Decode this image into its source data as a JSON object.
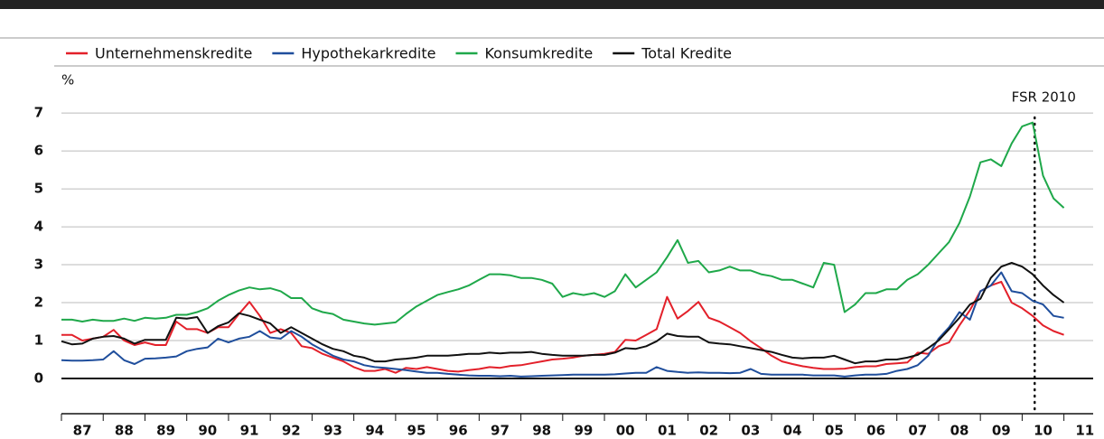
{
  "chart_data": {
    "type": "line",
    "y_unit": "%",
    "annotation": {
      "text": "FSR 2010",
      "x": 2010.3
    },
    "legend": "top-left",
    "grid": true,
    "xlim": [
      1987,
      2011.7
    ],
    "ylim": [
      -0.93,
      7.6
    ],
    "yticks": [
      0,
      1,
      2,
      3,
      4,
      5,
      6,
      7
    ],
    "xticks": [
      {
        "value": 1987.5,
        "label": "87"
      },
      {
        "value": 1988.5,
        "label": "88"
      },
      {
        "value": 1989.5,
        "label": "89"
      },
      {
        "value": 1990.5,
        "label": "90"
      },
      {
        "value": 1991.5,
        "label": "91"
      },
      {
        "value": 1992.5,
        "label": "92"
      },
      {
        "value": 1993.5,
        "label": "93"
      },
      {
        "value": 1994.5,
        "label": "94"
      },
      {
        "value": 1995.5,
        "label": "95"
      },
      {
        "value": 1996.5,
        "label": "96"
      },
      {
        "value": 1997.5,
        "label": "97"
      },
      {
        "value": 1998.5,
        "label": "98"
      },
      {
        "value": 1999.5,
        "label": "99"
      },
      {
        "value": 2000.5,
        "label": "00"
      },
      {
        "value": 2001.5,
        "label": "01"
      },
      {
        "value": 2002.5,
        "label": "02"
      },
      {
        "value": 2003.5,
        "label": "03"
      },
      {
        "value": 2004.5,
        "label": "04"
      },
      {
        "value": 2005.5,
        "label": "05"
      },
      {
        "value": 2006.5,
        "label": "06"
      },
      {
        "value": 2007.5,
        "label": "07"
      },
      {
        "value": 2008.5,
        "label": "08"
      },
      {
        "value": 2009.5,
        "label": "09"
      },
      {
        "value": 2010.5,
        "label": "10"
      },
      {
        "value": 2011.5,
        "label": "11"
      }
    ],
    "x": [
      1987,
      1987.25,
      1987.5,
      1987.75,
      1988,
      1988.25,
      1988.5,
      1988.75,
      1989,
      1989.25,
      1989.5,
      1989.75,
      1990,
      1990.25,
      1990.5,
      1990.75,
      1991,
      1991.25,
      1991.5,
      1991.75,
      1992,
      1992.25,
      1992.5,
      1992.75,
      1993,
      1993.25,
      1993.5,
      1993.75,
      1994,
      1994.25,
      1994.5,
      1994.75,
      1995,
      1995.25,
      1995.5,
      1995.75,
      1996,
      1996.25,
      1996.5,
      1996.75,
      1997,
      1997.25,
      1997.5,
      1997.75,
      1998,
      1998.25,
      1998.5,
      1998.75,
      1999,
      1999.25,
      1999.5,
      1999.75,
      2000,
      2000.25,
      2000.5,
      2000.75,
      2001,
      2001.25,
      2001.5,
      2001.75,
      2002,
      2002.25,
      2002.5,
      2002.75,
      2003,
      2003.25,
      2003.5,
      2003.75,
      2004,
      2004.25,
      2004.5,
      2004.75,
      2005,
      2005.25,
      2005.5,
      2005.75,
      2006,
      2006.25,
      2006.5,
      2006.75,
      2007,
      2007.25,
      2007.5,
      2007.75,
      2008,
      2008.25,
      2008.5,
      2008.75,
      2009,
      2009.25,
      2009.5,
      2009.75,
      2010,
      2010.25,
      2010.5,
      2010.75,
      2011
    ],
    "series": [
      {
        "name": "Unternehmenskredite",
        "color": "#e3202a",
        "values": [
          1.15,
          1.15,
          1.0,
          1.05,
          1.1,
          1.28,
          1.0,
          0.88,
          0.95,
          0.88,
          0.88,
          1.5,
          1.3,
          1.3,
          1.2,
          1.35,
          1.35,
          1.7,
          2.02,
          1.65,
          1.2,
          1.3,
          1.2,
          0.85,
          0.8,
          0.65,
          0.55,
          0.45,
          0.3,
          0.2,
          0.2,
          0.25,
          0.15,
          0.28,
          0.25,
          0.3,
          0.25,
          0.2,
          0.18,
          0.22,
          0.25,
          0.3,
          0.28,
          0.33,
          0.35,
          0.4,
          0.45,
          0.5,
          0.52,
          0.55,
          0.6,
          0.62,
          0.65,
          0.7,
          1.02,
          1.0,
          1.15,
          1.3,
          2.15,
          1.58,
          1.78,
          2.02,
          1.6,
          1.5,
          1.35,
          1.2,
          0.98,
          0.8,
          0.6,
          0.45,
          0.38,
          0.32,
          0.28,
          0.25,
          0.25,
          0.26,
          0.3,
          0.32,
          0.32,
          0.38,
          0.4,
          0.42,
          0.68,
          0.65,
          0.85,
          0.95,
          1.4,
          1.8,
          2.3,
          2.45,
          2.55,
          2.0,
          1.85,
          1.65,
          1.4,
          1.25,
          1.15
        ]
      },
      {
        "name": "Hypothekarkredite",
        "color": "#1f4e9c",
        "values": [
          0.48,
          0.47,
          0.47,
          0.48,
          0.5,
          0.72,
          0.48,
          0.38,
          0.52,
          0.53,
          0.55,
          0.58,
          0.72,
          0.78,
          0.82,
          1.05,
          0.95,
          1.05,
          1.1,
          1.25,
          1.08,
          1.05,
          1.25,
          1.1,
          0.9,
          0.75,
          0.6,
          0.5,
          0.45,
          0.35,
          0.3,
          0.28,
          0.25,
          0.22,
          0.18,
          0.15,
          0.15,
          0.12,
          0.1,
          0.08,
          0.07,
          0.07,
          0.06,
          0.07,
          0.05,
          0.06,
          0.07,
          0.08,
          0.09,
          0.1,
          0.1,
          0.1,
          0.1,
          0.11,
          0.13,
          0.15,
          0.15,
          0.3,
          0.2,
          0.17,
          0.15,
          0.16,
          0.15,
          0.15,
          0.14,
          0.15,
          0.25,
          0.12,
          0.1,
          0.1,
          0.1,
          0.1,
          0.08,
          0.08,
          0.08,
          0.05,
          0.08,
          0.1,
          0.1,
          0.12,
          0.2,
          0.25,
          0.35,
          0.6,
          1.05,
          1.35,
          1.75,
          1.55,
          2.3,
          2.45,
          2.8,
          2.3,
          2.25,
          2.05,
          1.95,
          1.65,
          1.6
        ]
      },
      {
        "name": "Konsumkredite",
        "color": "#1fa84a",
        "values": [
          1.55,
          1.55,
          1.5,
          1.55,
          1.52,
          1.52,
          1.58,
          1.52,
          1.6,
          1.58,
          1.6,
          1.68,
          1.68,
          1.75,
          1.85,
          2.05,
          2.2,
          2.32,
          2.4,
          2.35,
          2.38,
          2.3,
          2.12,
          2.12,
          1.85,
          1.75,
          1.7,
          1.55,
          1.5,
          1.45,
          1.42,
          1.45,
          1.48,
          1.7,
          1.9,
          2.05,
          2.2,
          2.28,
          2.35,
          2.45,
          2.6,
          2.75,
          2.75,
          2.72,
          2.65,
          2.65,
          2.6,
          2.5,
          2.15,
          2.25,
          2.2,
          2.25,
          2.15,
          2.3,
          2.75,
          2.4,
          2.6,
          2.8,
          3.2,
          3.65,
          3.05,
          3.1,
          2.8,
          2.85,
          2.95,
          2.85,
          2.85,
          2.75,
          2.7,
          2.6,
          2.6,
          2.5,
          2.4,
          3.05,
          3.0,
          1.75,
          1.95,
          2.25,
          2.25,
          2.35,
          2.35,
          2.6,
          2.75,
          3.0,
          3.3,
          3.6,
          4.1,
          4.8,
          5.7,
          5.78,
          5.6,
          6.2,
          6.65,
          6.75,
          5.35,
          4.75,
          4.5
        ]
      },
      {
        "name": "Total Kredite",
        "color": "#111111",
        "values": [
          0.98,
          0.9,
          0.92,
          1.05,
          1.1,
          1.12,
          1.05,
          0.92,
          1.02,
          1.02,
          1.02,
          1.6,
          1.58,
          1.62,
          1.2,
          1.38,
          1.48,
          1.72,
          1.65,
          1.55,
          1.45,
          1.2,
          1.35,
          1.2,
          1.05,
          0.9,
          0.78,
          0.72,
          0.6,
          0.55,
          0.45,
          0.45,
          0.5,
          0.52,
          0.55,
          0.6,
          0.6,
          0.6,
          0.62,
          0.65,
          0.65,
          0.68,
          0.66,
          0.68,
          0.68,
          0.7,
          0.65,
          0.62,
          0.6,
          0.6,
          0.6,
          0.62,
          0.62,
          0.68,
          0.8,
          0.78,
          0.85,
          0.98,
          1.18,
          1.12,
          1.1,
          1.1,
          0.95,
          0.92,
          0.9,
          0.85,
          0.8,
          0.75,
          0.7,
          0.62,
          0.55,
          0.53,
          0.55,
          0.55,
          0.6,
          0.5,
          0.4,
          0.45,
          0.45,
          0.5,
          0.5,
          0.55,
          0.62,
          0.8,
          1.0,
          1.3,
          1.6,
          1.95,
          2.1,
          2.65,
          2.95,
          3.05,
          2.95,
          2.75,
          2.45,
          2.2,
          2.0
        ]
      }
    ]
  }
}
